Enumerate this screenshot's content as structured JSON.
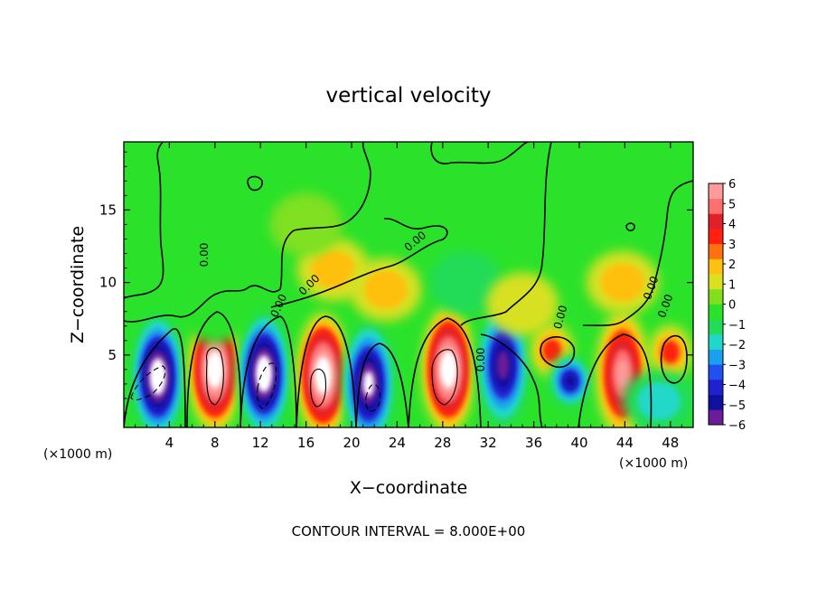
{
  "chart_data": {
    "type": "heatmap",
    "title": "vertical velocity",
    "xlabel": "X−coordinate",
    "ylabel": "Z−coordinate",
    "x_unit_label": "(×1000 m)",
    "y_unit_label": "(×1000 m)",
    "xlim": [
      0,
      50
    ],
    "ylim": [
      0,
      19.7
    ],
    "x_ticks": [
      4,
      8,
      12,
      16,
      20,
      24,
      28,
      32,
      36,
      40,
      44,
      48
    ],
    "y_ticks": [
      5,
      10,
      15
    ],
    "footer": "CONTOUR INTERVAL = 8.000E+00",
    "contour_labels": [
      "0.00",
      "0.00",
      "0.00",
      "0.00",
      "0.00",
      "0.00",
      "0.00",
      "0.00"
    ],
    "colorbar": {
      "min": -6,
      "max": 6,
      "tick_labels": [
        "6",
        "5",
        "4",
        "3",
        "2",
        "1",
        "0",
        "−1",
        "−2",
        "−3",
        "−4",
        "−5",
        "−6"
      ],
      "colors": [
        "#6a1c9a",
        "#1010a0",
        "#2020d0",
        "#2050f0",
        "#1aa0f0",
        "#20d8c8",
        "#22dc58",
        "#2ae22a",
        "#80e020",
        "#d8e020",
        "#ffc010",
        "#ff7010",
        "#ff2010",
        "#e0202a",
        "#ff7070",
        "#ff9a9a"
      ]
    },
    "cells": [
      {
        "x": 3,
        "z": 3.5,
        "w": -8
      },
      {
        "x": 8,
        "z": 4.0,
        "w": 8
      },
      {
        "x": 12.3,
        "z": 3.7,
        "w": -8
      },
      {
        "x": 17.5,
        "z": 3.6,
        "w": 8
      },
      {
        "x": 21.5,
        "z": 3.0,
        "w": -7
      },
      {
        "x": 28.5,
        "z": 4.0,
        "w": 8
      },
      {
        "x": 33.3,
        "z": 4.3,
        "w": -6
      },
      {
        "x": 37.6,
        "z": 5.3,
        "w": 3
      },
      {
        "x": 39.2,
        "z": 3.2,
        "w": -5
      },
      {
        "x": 43.8,
        "z": 3.7,
        "w": 6
      },
      {
        "x": 48.0,
        "z": 5.2,
        "w": 3
      },
      {
        "x": 47.0,
        "z": 1.8,
        "w": -2
      },
      {
        "x": 18.4,
        "z": 10.9,
        "w": 2
      },
      {
        "x": 23.0,
        "z": 9.5,
        "w": 1.5
      },
      {
        "x": 43.8,
        "z": 10.0,
        "w": 1.5
      },
      {
        "x": 30.0,
        "z": 10.0,
        "w": -1.2
      },
      {
        "x": 16.0,
        "z": 14.0,
        "w": 0.6
      },
      {
        "x": 35.0,
        "z": 8.5,
        "w": 0.8
      },
      {
        "x": 8.0,
        "z": 8.0,
        "w": -0.7
      }
    ]
  }
}
